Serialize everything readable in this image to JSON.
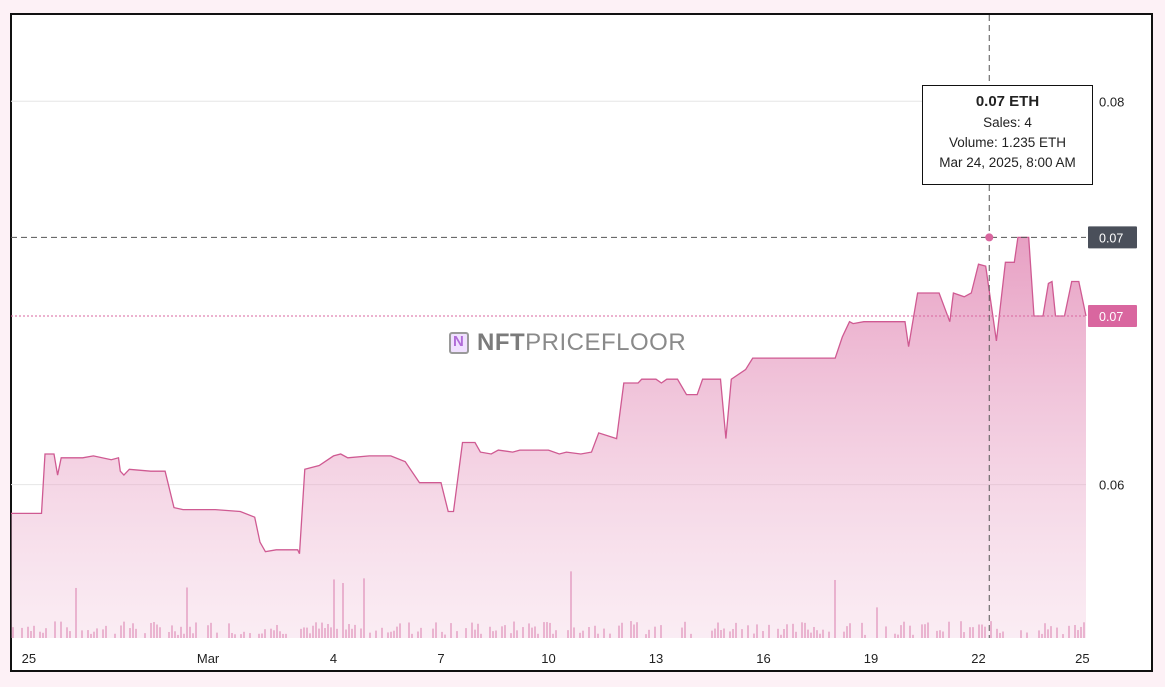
{
  "watermark": {
    "brand_bold": "NFT",
    "brand_light": "PRICEFLOOR",
    "icon": "nft-logo-icon"
  },
  "tooltip": {
    "price": "0.07 ETH",
    "sales": "Sales: 4",
    "volume": "Volume: 1.235 ETH",
    "date": "Mar 24, 2025, 8:00 AM"
  },
  "price_tags": {
    "crosshair": "0.07",
    "last": "0.07"
  },
  "colors": {
    "area": "#d9669f",
    "line": "#cf5a92",
    "volume": "#d97fae",
    "crosshair_tag": "#4a4f5a",
    "last_tag": "#d9669f"
  },
  "chart_data": {
    "type": "area",
    "x_ticks": [
      "25",
      "Mar",
      "4",
      "7",
      "10",
      "13",
      "16",
      "19",
      "22",
      "25"
    ],
    "y_ticks": [
      "0.08",
      "0.07",
      "0.06"
    ],
    "y_tick_values": [
      0.08,
      0.07,
      0.06
    ],
    "ylim": [
      0.052,
      0.0845
    ],
    "xlim": [
      0,
      30
    ],
    "series": [
      {
        "values": [
          [
            0.0,
            0.0585
          ],
          [
            0.85,
            0.0585
          ],
          [
            0.95,
            0.0616
          ],
          [
            1.2,
            0.0616
          ],
          [
            1.3,
            0.0605
          ],
          [
            1.4,
            0.0614
          ],
          [
            2.0,
            0.0614
          ],
          [
            2.3,
            0.0615
          ],
          [
            2.8,
            0.0613
          ],
          [
            3.0,
            0.0614
          ],
          [
            3.05,
            0.0607
          ],
          [
            3.15,
            0.0605
          ],
          [
            3.3,
            0.0608
          ],
          [
            3.9,
            0.0607
          ],
          [
            4.3,
            0.0607
          ],
          [
            4.55,
            0.0588
          ],
          [
            4.8,
            0.0587
          ],
          [
            5.7,
            0.0587
          ],
          [
            6.4,
            0.0586
          ],
          [
            6.8,
            0.0583
          ],
          [
            6.95,
            0.057
          ],
          [
            7.1,
            0.0565
          ],
          [
            7.4,
            0.0566
          ],
          [
            8.0,
            0.0566
          ],
          [
            8.05,
            0.0564
          ],
          [
            8.2,
            0.0608
          ],
          [
            8.6,
            0.061
          ],
          [
            9.0,
            0.0615
          ],
          [
            9.2,
            0.0616
          ],
          [
            9.4,
            0.0614
          ],
          [
            10.0,
            0.0615
          ],
          [
            10.6,
            0.0615
          ],
          [
            11.0,
            0.0612
          ],
          [
            11.4,
            0.0601
          ],
          [
            11.5,
            0.0601
          ],
          [
            12.0,
            0.0601
          ],
          [
            12.2,
            0.0586
          ],
          [
            12.35,
            0.0586
          ],
          [
            12.6,
            0.0622
          ],
          [
            12.95,
            0.0622
          ],
          [
            13.1,
            0.0617
          ],
          [
            13.4,
            0.0616
          ],
          [
            13.6,
            0.0618
          ],
          [
            14.0,
            0.0617
          ],
          [
            14.2,
            0.0618
          ],
          [
            15.0,
            0.0618
          ],
          [
            15.3,
            0.0616
          ],
          [
            15.5,
            0.0617
          ],
          [
            15.9,
            0.0616
          ],
          [
            16.2,
            0.0617
          ],
          [
            16.4,
            0.0627
          ],
          [
            16.9,
            0.0624
          ],
          [
            17.1,
            0.0653
          ],
          [
            17.5,
            0.0653
          ],
          [
            17.6,
            0.0655
          ],
          [
            18.0,
            0.0655
          ],
          [
            18.15,
            0.0653
          ],
          [
            18.3,
            0.0655
          ],
          [
            18.6,
            0.0655
          ],
          [
            18.85,
            0.0647
          ],
          [
            19.15,
            0.0647
          ],
          [
            19.3,
            0.0655
          ],
          [
            19.8,
            0.0655
          ],
          [
            19.95,
            0.0624
          ],
          [
            20.1,
            0.0655
          ],
          [
            20.5,
            0.066
          ],
          [
            20.7,
            0.0666
          ],
          [
            21.0,
            0.0666
          ],
          [
            21.5,
            0.0666
          ],
          [
            23.0,
            0.0666
          ],
          [
            23.2,
            0.0677
          ],
          [
            23.4,
            0.0685
          ],
          [
            23.5,
            0.0684
          ],
          [
            23.8,
            0.0685
          ],
          [
            24.2,
            0.0685
          ],
          [
            24.95,
            0.0685
          ],
          [
            25.05,
            0.0672
          ],
          [
            25.3,
            0.07
          ],
          [
            25.9,
            0.07
          ],
          [
            26.2,
            0.0685
          ],
          [
            26.3,
            0.07
          ],
          [
            26.6,
            0.0698
          ],
          [
            26.8,
            0.07
          ],
          [
            27.0,
            0.0715
          ],
          [
            27.2,
            0.0714
          ],
          [
            27.5,
            0.0675
          ],
          [
            27.75,
            0.0716
          ],
          [
            28.0,
            0.0716
          ],
          [
            28.1,
            0.0729
          ],
          [
            28.2,
            0.0729
          ],
          [
            28.4,
            0.0729
          ],
          [
            28.55,
            0.0688
          ],
          [
            28.8,
            0.0688
          ],
          [
            28.95,
            0.0705
          ],
          [
            29.05,
            0.0706
          ],
          [
            29.15,
            0.0688
          ],
          [
            29.4,
            0.0688
          ],
          [
            29.6,
            0.0706
          ],
          [
            29.8,
            0.0706
          ],
          [
            30.0,
            0.0688
          ]
        ]
      }
    ],
    "crosshair": {
      "x": 27.3,
      "y": 0.0729
    }
  }
}
